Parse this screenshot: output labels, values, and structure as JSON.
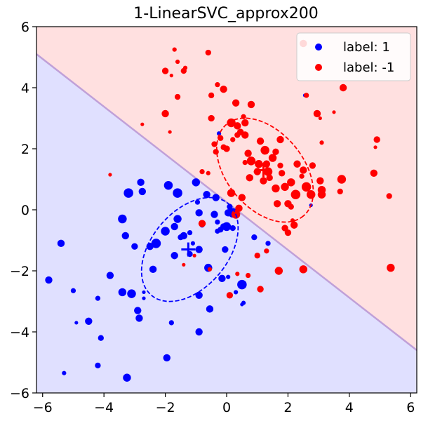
{
  "chart_data": {
    "type": "scatter",
    "title": "1-LinearSVC_approx200",
    "xlabel": "",
    "ylabel": "",
    "xlim": [
      -6.2,
      6.2
    ],
    "ylim": [
      -6,
      6
    ],
    "xticks": [
      -6,
      -4,
      -2,
      0,
      2,
      4,
      6
    ],
    "yticks": [
      -6,
      -4,
      -2,
      0,
      2,
      4,
      6
    ],
    "xtick_labels": [
      "−6",
      "−4",
      "−2",
      "0",
      "2",
      "4",
      "6"
    ],
    "ytick_labels": [
      "−6",
      "−4",
      "−2",
      "0",
      "2",
      "4",
      "6"
    ],
    "grid": false,
    "legend_position": "top-right",
    "decision_boundary": {
      "x": [
        -6.2,
        6.2
      ],
      "y": [
        5.1,
        -4.6
      ],
      "region_above_label": "label: -1",
      "region_below_label": "label: 1",
      "region_above_color": "#ffe0e0",
      "region_below_color": "#e0e0ff",
      "boundary_color": "#c0a0d8"
    },
    "series": [
      {
        "name": "label: 1",
        "color": "#0000ff",
        "mean": [
          -1.25,
          -1.3
        ],
        "ellipse": {
          "center": [
            -1.2,
            -1.3
          ],
          "rx": 3.9,
          "ry": 2.5,
          "angle_deg": 50
        },
        "points": [
          [
            -5.8,
            -2.3,
            1.0
          ],
          [
            -5.4,
            -1.1,
            1.0
          ],
          [
            -5.3,
            -5.35,
            0.6
          ],
          [
            -5.0,
            -2.65,
            0.7
          ],
          [
            -4.9,
            -3.7,
            0.5
          ],
          [
            -4.5,
            -3.65,
            1.0
          ],
          [
            -4.2,
            -2.9,
            0.7
          ],
          [
            -4.1,
            -4.2,
            0.8
          ],
          [
            -3.8,
            -2.15,
            1.0
          ],
          [
            -4.2,
            -5.1,
            0.8
          ],
          [
            -3.4,
            -2.7,
            1.1
          ],
          [
            -3.25,
            -5.5,
            1.1
          ],
          [
            -3.2,
            0.55,
            1.3
          ],
          [
            -3.4,
            -0.3,
            1.2
          ],
          [
            -3.3,
            -0.85,
            1.0
          ],
          [
            -3.1,
            -2.75,
            1.2
          ],
          [
            -2.9,
            -3.3,
            1.0
          ],
          [
            -2.85,
            -3.55,
            1.0
          ],
          [
            -2.8,
            0.9,
            1.0
          ],
          [
            -2.75,
            0.6,
            1.0
          ],
          [
            -3.0,
            -1.2,
            0.9
          ],
          [
            -2.7,
            -2.7,
            0.5
          ],
          [
            -2.5,
            -1.2,
            1.0
          ],
          [
            -2.4,
            -1.95,
            1.0
          ],
          [
            -2.3,
            -1.1,
            1.3
          ],
          [
            -2.0,
            -0.7,
            1.2
          ],
          [
            -1.9,
            0.8,
            1.2
          ],
          [
            -1.8,
            -3.7,
            0.7
          ],
          [
            -1.95,
            -4.85,
            1.0
          ],
          [
            -1.6,
            0.55,
            1.3
          ],
          [
            -1.6,
            -0.3,
            1.1
          ],
          [
            -1.7,
            -0.55,
            1.0
          ],
          [
            -1.7,
            -1.5,
            1.0
          ],
          [
            -1.5,
            -0.9,
            0.8
          ],
          [
            -1.4,
            -0.85,
            1.0
          ],
          [
            -1.2,
            -0.75,
            0.7
          ],
          [
            -1.1,
            -1.1,
            0.6
          ],
          [
            -1.0,
            0.9,
            1.1
          ],
          [
            -0.9,
            -0.1,
            1.0
          ],
          [
            -0.9,
            -1.3,
            1.0
          ],
          [
            -0.8,
            -0.5,
            0.7
          ],
          [
            -0.65,
            0.5,
            1.0
          ],
          [
            -0.6,
            -1.9,
            1.1
          ],
          [
            -0.4,
            -0.15,
            1.0
          ],
          [
            -0.35,
            0.4,
            1.0
          ],
          [
            -0.3,
            -0.4,
            0.7
          ],
          [
            -0.2,
            -0.65,
            0.8
          ],
          [
            -0.1,
            -0.55,
            0.9
          ],
          [
            0.0,
            -0.55,
            1.2
          ],
          [
            0.05,
            -0.1,
            1.0
          ],
          [
            0.1,
            0.1,
            0.8
          ],
          [
            0.2,
            -0.1,
            1.3
          ],
          [
            0.2,
            -0.6,
            0.8
          ],
          [
            -0.9,
            -2.8,
            1.0
          ],
          [
            -0.9,
            -4.0,
            1.0
          ],
          [
            -0.55,
            -3.25,
            1.0
          ],
          [
            -0.15,
            -2.25,
            1.0
          ],
          [
            -0.05,
            -1.3,
            0.9
          ],
          [
            0.5,
            -2.45,
            1.3
          ],
          [
            0.9,
            -0.9,
            0.8
          ],
          [
            0.3,
            -2.7,
            0.6
          ],
          [
            -1.2,
            -1.45,
            0.8
          ],
          [
            -0.95,
            0.25,
            0.7
          ],
          [
            0.05,
            -2.2,
            0.6
          ],
          [
            -0.25,
            2.5,
            0.6
          ],
          [
            2.55,
            3.75,
            0.5
          ],
          [
            2.75,
            0.15,
            0.5
          ],
          [
            -2.7,
            -2.9,
            0.5
          ],
          [
            -0.3,
            -0.7,
            0.7
          ],
          [
            0.55,
            -3.05,
            0.6
          ],
          [
            1.35,
            -1.1,
            0.7
          ],
          [
            0.5,
            -3.1,
            0.5
          ]
        ]
      },
      {
        "name": "label: -1",
        "color": "#ff0000",
        "mean": [
          1.2,
          1.3
        ],
        "ellipse": {
          "center": [
            1.25,
            1.3
          ],
          "rx": 3.9,
          "ry": 2.5,
          "angle_deg": -50
        },
        "points": [
          [
            -1.7,
            5.25,
            0.6
          ],
          [
            -1.6,
            4.85,
            0.6
          ],
          [
            -1.35,
            4.65,
            0.6
          ],
          [
            -1.8,
            4.4,
            0.5
          ],
          [
            -1.85,
            2.55,
            0.5
          ],
          [
            -2.0,
            4.55,
            0.9
          ],
          [
            -1.4,
            4.55,
            0.8
          ],
          [
            -0.6,
            5.15,
            0.8
          ],
          [
            -0.3,
            4.1,
            0.7
          ],
          [
            -0.5,
            3.75,
            0.8
          ],
          [
            -2.0,
            3.15,
            1.0
          ],
          [
            -1.6,
            3.7,
            0.8
          ],
          [
            -0.1,
            3.95,
            1.0
          ],
          [
            0.3,
            3.5,
            1.0
          ],
          [
            0.2,
            2.3,
            0.7
          ],
          [
            -0.5,
            3.0,
            0.9
          ],
          [
            -0.4,
            2.15,
            0.8
          ],
          [
            -0.35,
            1.9,
            0.8
          ],
          [
            -0.2,
            2.35,
            0.8
          ],
          [
            -0.1,
            2.05,
            0.8
          ],
          [
            0.0,
            2.0,
            0.9
          ],
          [
            0.15,
            2.85,
            1.2
          ],
          [
            0.35,
            2.75,
            1.0
          ],
          [
            0.45,
            2.55,
            0.9
          ],
          [
            0.6,
            2.45,
            1.0
          ],
          [
            0.6,
            2.85,
            1.0
          ],
          [
            0.7,
            1.85,
            1.0
          ],
          [
            0.75,
            1.05,
            1.0
          ],
          [
            0.8,
            1.6,
            1.2
          ],
          [
            0.8,
            3.45,
            1.0
          ],
          [
            1.0,
            1.25,
            1.0
          ],
          [
            1.05,
            1.5,
            1.1
          ],
          [
            1.1,
            2.25,
            1.0
          ],
          [
            1.2,
            0.95,
            1.0
          ],
          [
            1.3,
            1.5,
            1.0
          ],
          [
            1.25,
            1.95,
            1.2
          ],
          [
            1.35,
            1.25,
            1.2
          ],
          [
            1.4,
            1.05,
            0.9
          ],
          [
            1.5,
            1.7,
            1.1
          ],
          [
            1.6,
            0.7,
            1.1
          ],
          [
            1.75,
            2.3,
            1.0
          ],
          [
            1.8,
            1.2,
            0.9
          ],
          [
            1.9,
            0.75,
            1.1
          ],
          [
            2.0,
            0.2,
            1.0
          ],
          [
            2.1,
            0.9,
            1.1
          ],
          [
            2.3,
            1.5,
            1.0
          ],
          [
            2.25,
            0.5,
            1.3
          ],
          [
            2.5,
            1.3,
            1.0
          ],
          [
            2.6,
            0.75,
            1.3
          ],
          [
            2.75,
            0.5,
            1.2
          ],
          [
            2.8,
            1.45,
            0.9
          ],
          [
            3.05,
            0.95,
            1.0
          ],
          [
            3.1,
            0.65,
            1.1
          ],
          [
            3.1,
            0.5,
            1.1
          ],
          [
            2.95,
            3.15,
            1.0
          ],
          [
            3.7,
            0.6,
            0.8
          ],
          [
            3.75,
            1.0,
            1.2
          ],
          [
            3.8,
            4.0,
            1.0
          ],
          [
            4.8,
            1.2,
            1.0
          ],
          [
            4.9,
            2.3,
            0.9
          ],
          [
            5.3,
            0.45,
            0.8
          ],
          [
            4.85,
            2.05,
            0.5
          ],
          [
            3.5,
            3.2,
            0.5
          ],
          [
            2.5,
            5.45,
            1.0
          ],
          [
            1.65,
            0.2,
            1.0
          ],
          [
            1.9,
            -0.6,
            0.9
          ],
          [
            2.0,
            -0.75,
            0.9
          ],
          [
            2.2,
            -0.5,
            1.0
          ],
          [
            1.7,
            -2.0,
            1.1
          ],
          [
            2.5,
            -1.95,
            1.1
          ],
          [
            0.1,
            -2.8,
            0.9
          ],
          [
            1.1,
            -2.6,
            0.9
          ],
          [
            5.35,
            -1.9,
            1.1
          ],
          [
            -0.8,
            -0.45,
            1.0
          ],
          [
            -1.4,
            -1.8,
            0.5
          ],
          [
            -0.55,
            -1.95,
            0.6
          ],
          [
            0.15,
            0.55,
            1.1
          ],
          [
            0.3,
            -0.15,
            1.2
          ],
          [
            0.4,
            0.05,
            1.0
          ],
          [
            -0.8,
            1.25,
            0.7
          ],
          [
            -0.6,
            1.2,
            0.6
          ],
          [
            0.5,
            0.4,
            1.0
          ],
          [
            0.55,
            3.05,
            0.7
          ],
          [
            1.75,
            1.45,
            0.8
          ],
          [
            2.1,
            0.1,
            0.8
          ],
          [
            2.45,
            1.1,
            0.7
          ],
          [
            3.05,
            3.0,
            0.5
          ],
          [
            -3.8,
            1.15,
            0.5
          ],
          [
            -2.75,
            2.8,
            0.5
          ],
          [
            -1.05,
            -1.5,
            0.5
          ],
          [
            2.15,
            -0.35,
            0.6
          ],
          [
            1.3,
            -1.35,
            0.7
          ],
          [
            1.0,
            -1.5,
            0.8
          ],
          [
            0.7,
            -2.15,
            0.7
          ],
          [
            0.35,
            -2.1,
            0.6
          ],
          [
            0.6,
            1.55,
            0.7
          ],
          [
            0.35,
            2.45,
            0.8
          ],
          [
            1.6,
            1.9,
            0.9
          ],
          [
            2.6,
            3.75,
            0.7
          ],
          [
            3.1,
            2.2,
            0.6
          ]
        ]
      }
    ]
  }
}
